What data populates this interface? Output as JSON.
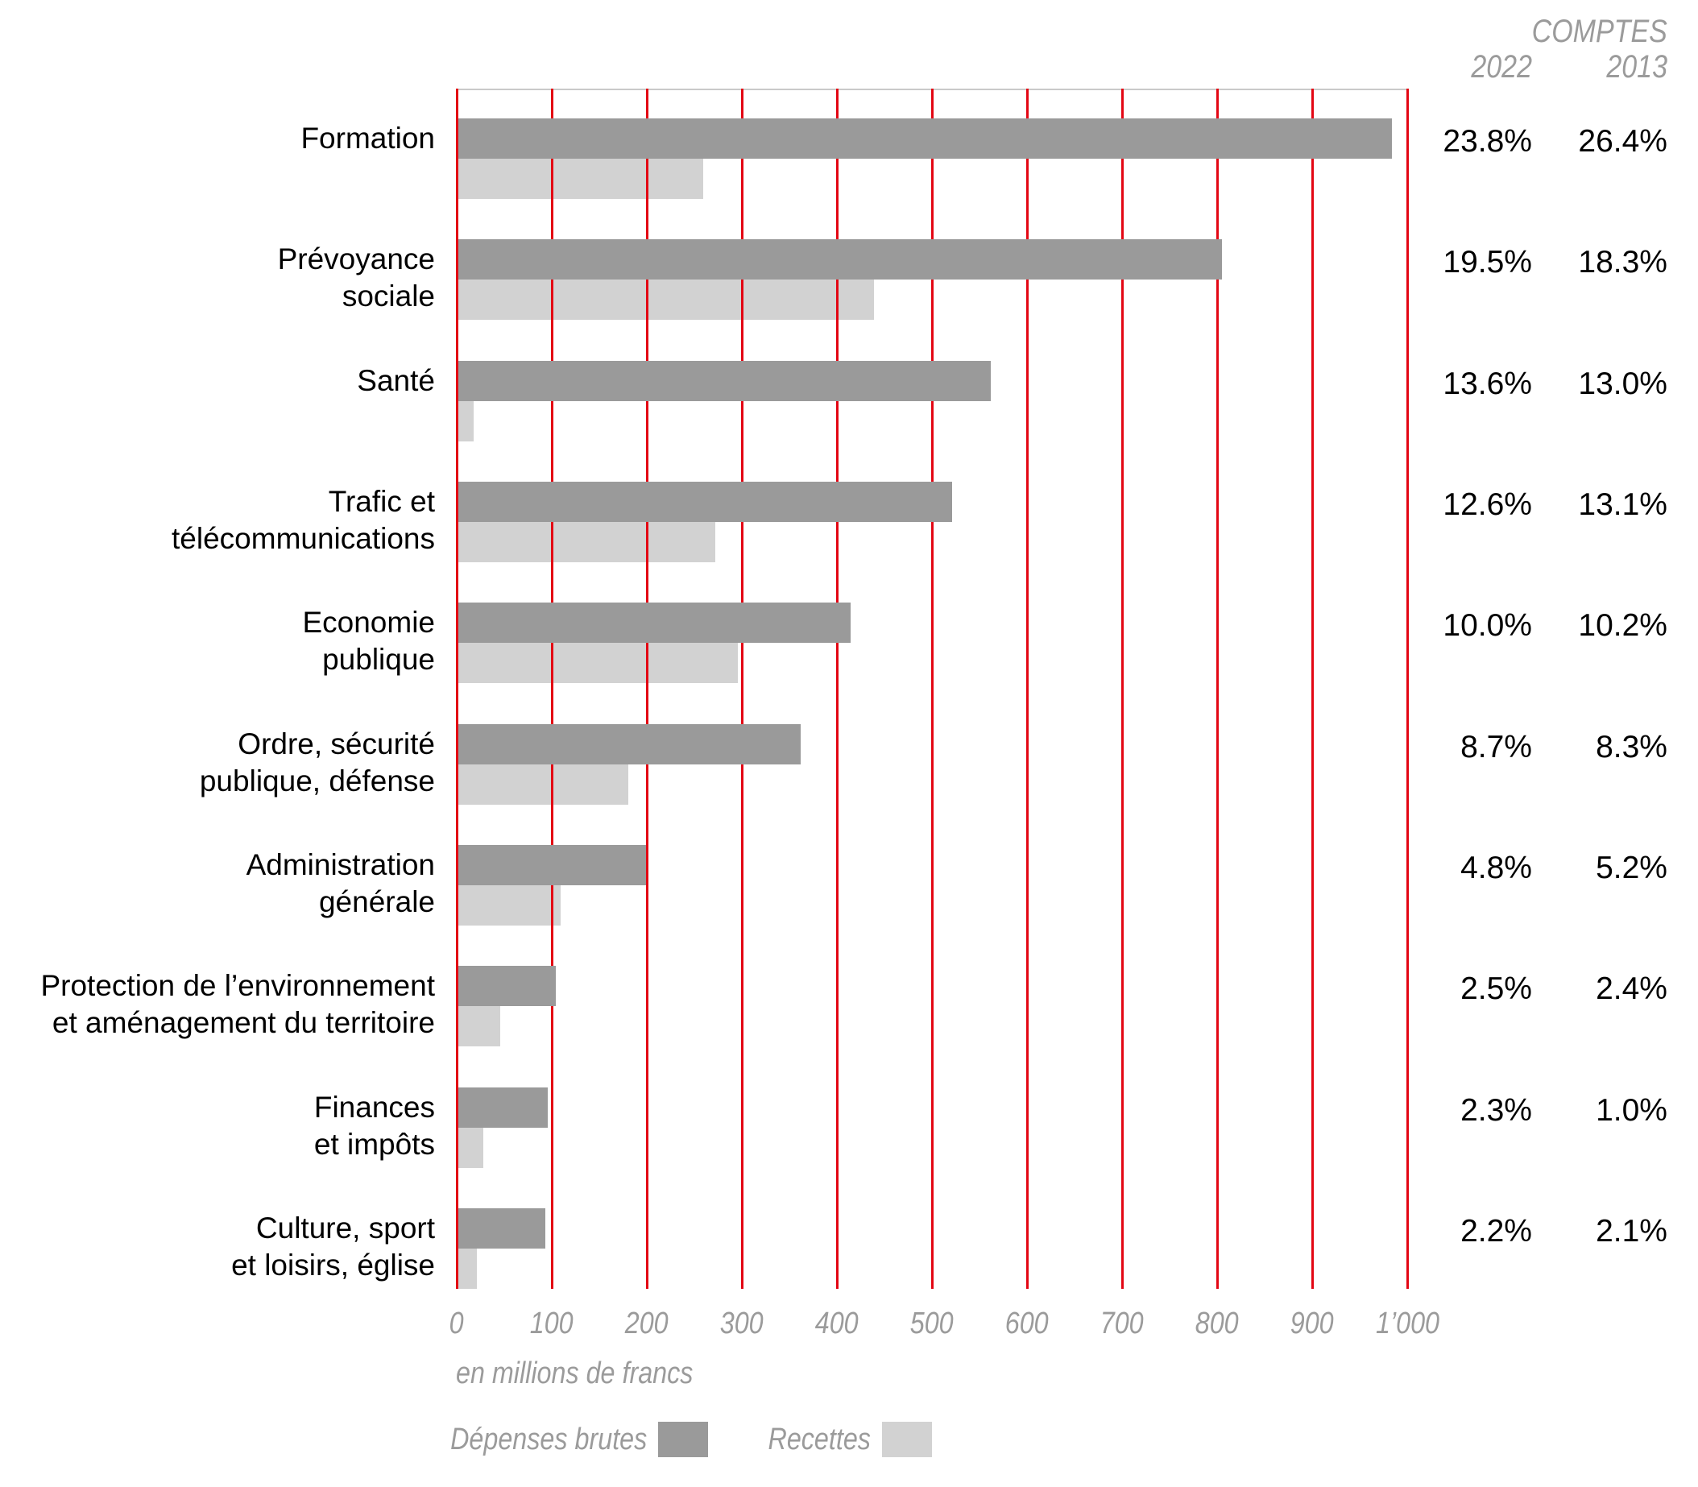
{
  "header": {
    "title": "COMPTES",
    "year_left": "2022",
    "year_right": "2013"
  },
  "axis": {
    "tick_labels": [
      "0",
      "100",
      "200",
      "300",
      "400",
      "500",
      "600",
      "700",
      "800",
      "900",
      "1’000"
    ],
    "unit_label": "en millions de francs"
  },
  "legend": {
    "expenses_label": "Dépenses brutes",
    "revenues_label": "Recettes"
  },
  "colors": {
    "expenses": "#9a9a9a",
    "revenues": "#d2d2d2",
    "grid": "#e30613",
    "muted_text": "#9b9b9b",
    "text": "#000000"
  },
  "chart_data": {
    "type": "bar",
    "orientation": "horizontal",
    "title": "COMPTES",
    "xlabel": "en millions de francs",
    "xlim": [
      0,
      1000
    ],
    "gridlines_every": 100,
    "grid": true,
    "legend_position": "bottom",
    "categories": [
      "Formation",
      "Prévoyance sociale",
      "Santé",
      "Trafic et télécommunications",
      "Economie publique",
      "Ordre, sécurité publique, défense",
      "Administration générale",
      "Protection de l’environnement et aménagement du territoire",
      "Finances et impôts",
      "Culture, sport et loisirs, église"
    ],
    "label_lines": [
      [
        "Formation"
      ],
      [
        "Prévoyance",
        "sociale"
      ],
      [
        "Santé"
      ],
      [
        "Trafic et",
        "télécommunications"
      ],
      [
        "Economie",
        "publique"
      ],
      [
        "Ordre, sécurité",
        "publique, défense"
      ],
      [
        "Administration",
        "générale"
      ],
      [
        "Protection de l’environnement",
        "et aménagement du territoire"
      ],
      [
        "Finances",
        "et impôts"
      ],
      [
        "Culture, sport",
        "et loisirs, église"
      ]
    ],
    "series": [
      {
        "name": "Dépenses brutes",
        "values": [
          985,
          806,
          563,
          522,
          415,
          363,
          200,
          105,
          97,
          94
        ]
      },
      {
        "name": "Recettes",
        "values": [
          260,
          440,
          19,
          273,
          297,
          181,
          110,
          47,
          29,
          22
        ]
      }
    ],
    "percent_share": {
      "comptes_2022": [
        "23.8%",
        "19.5%",
        "13.6%",
        "12.6%",
        "10.0%",
        "8.7%",
        "4.8%",
        "2.5%",
        "2.3%",
        "2.2%"
      ],
      "comptes_2013": [
        "26.4%",
        "18.3%",
        "13.0%",
        "13.1%",
        "10.2%",
        "8.3%",
        "5.2%",
        "2.4%",
        "1.0%",
        "2.1%"
      ]
    }
  }
}
